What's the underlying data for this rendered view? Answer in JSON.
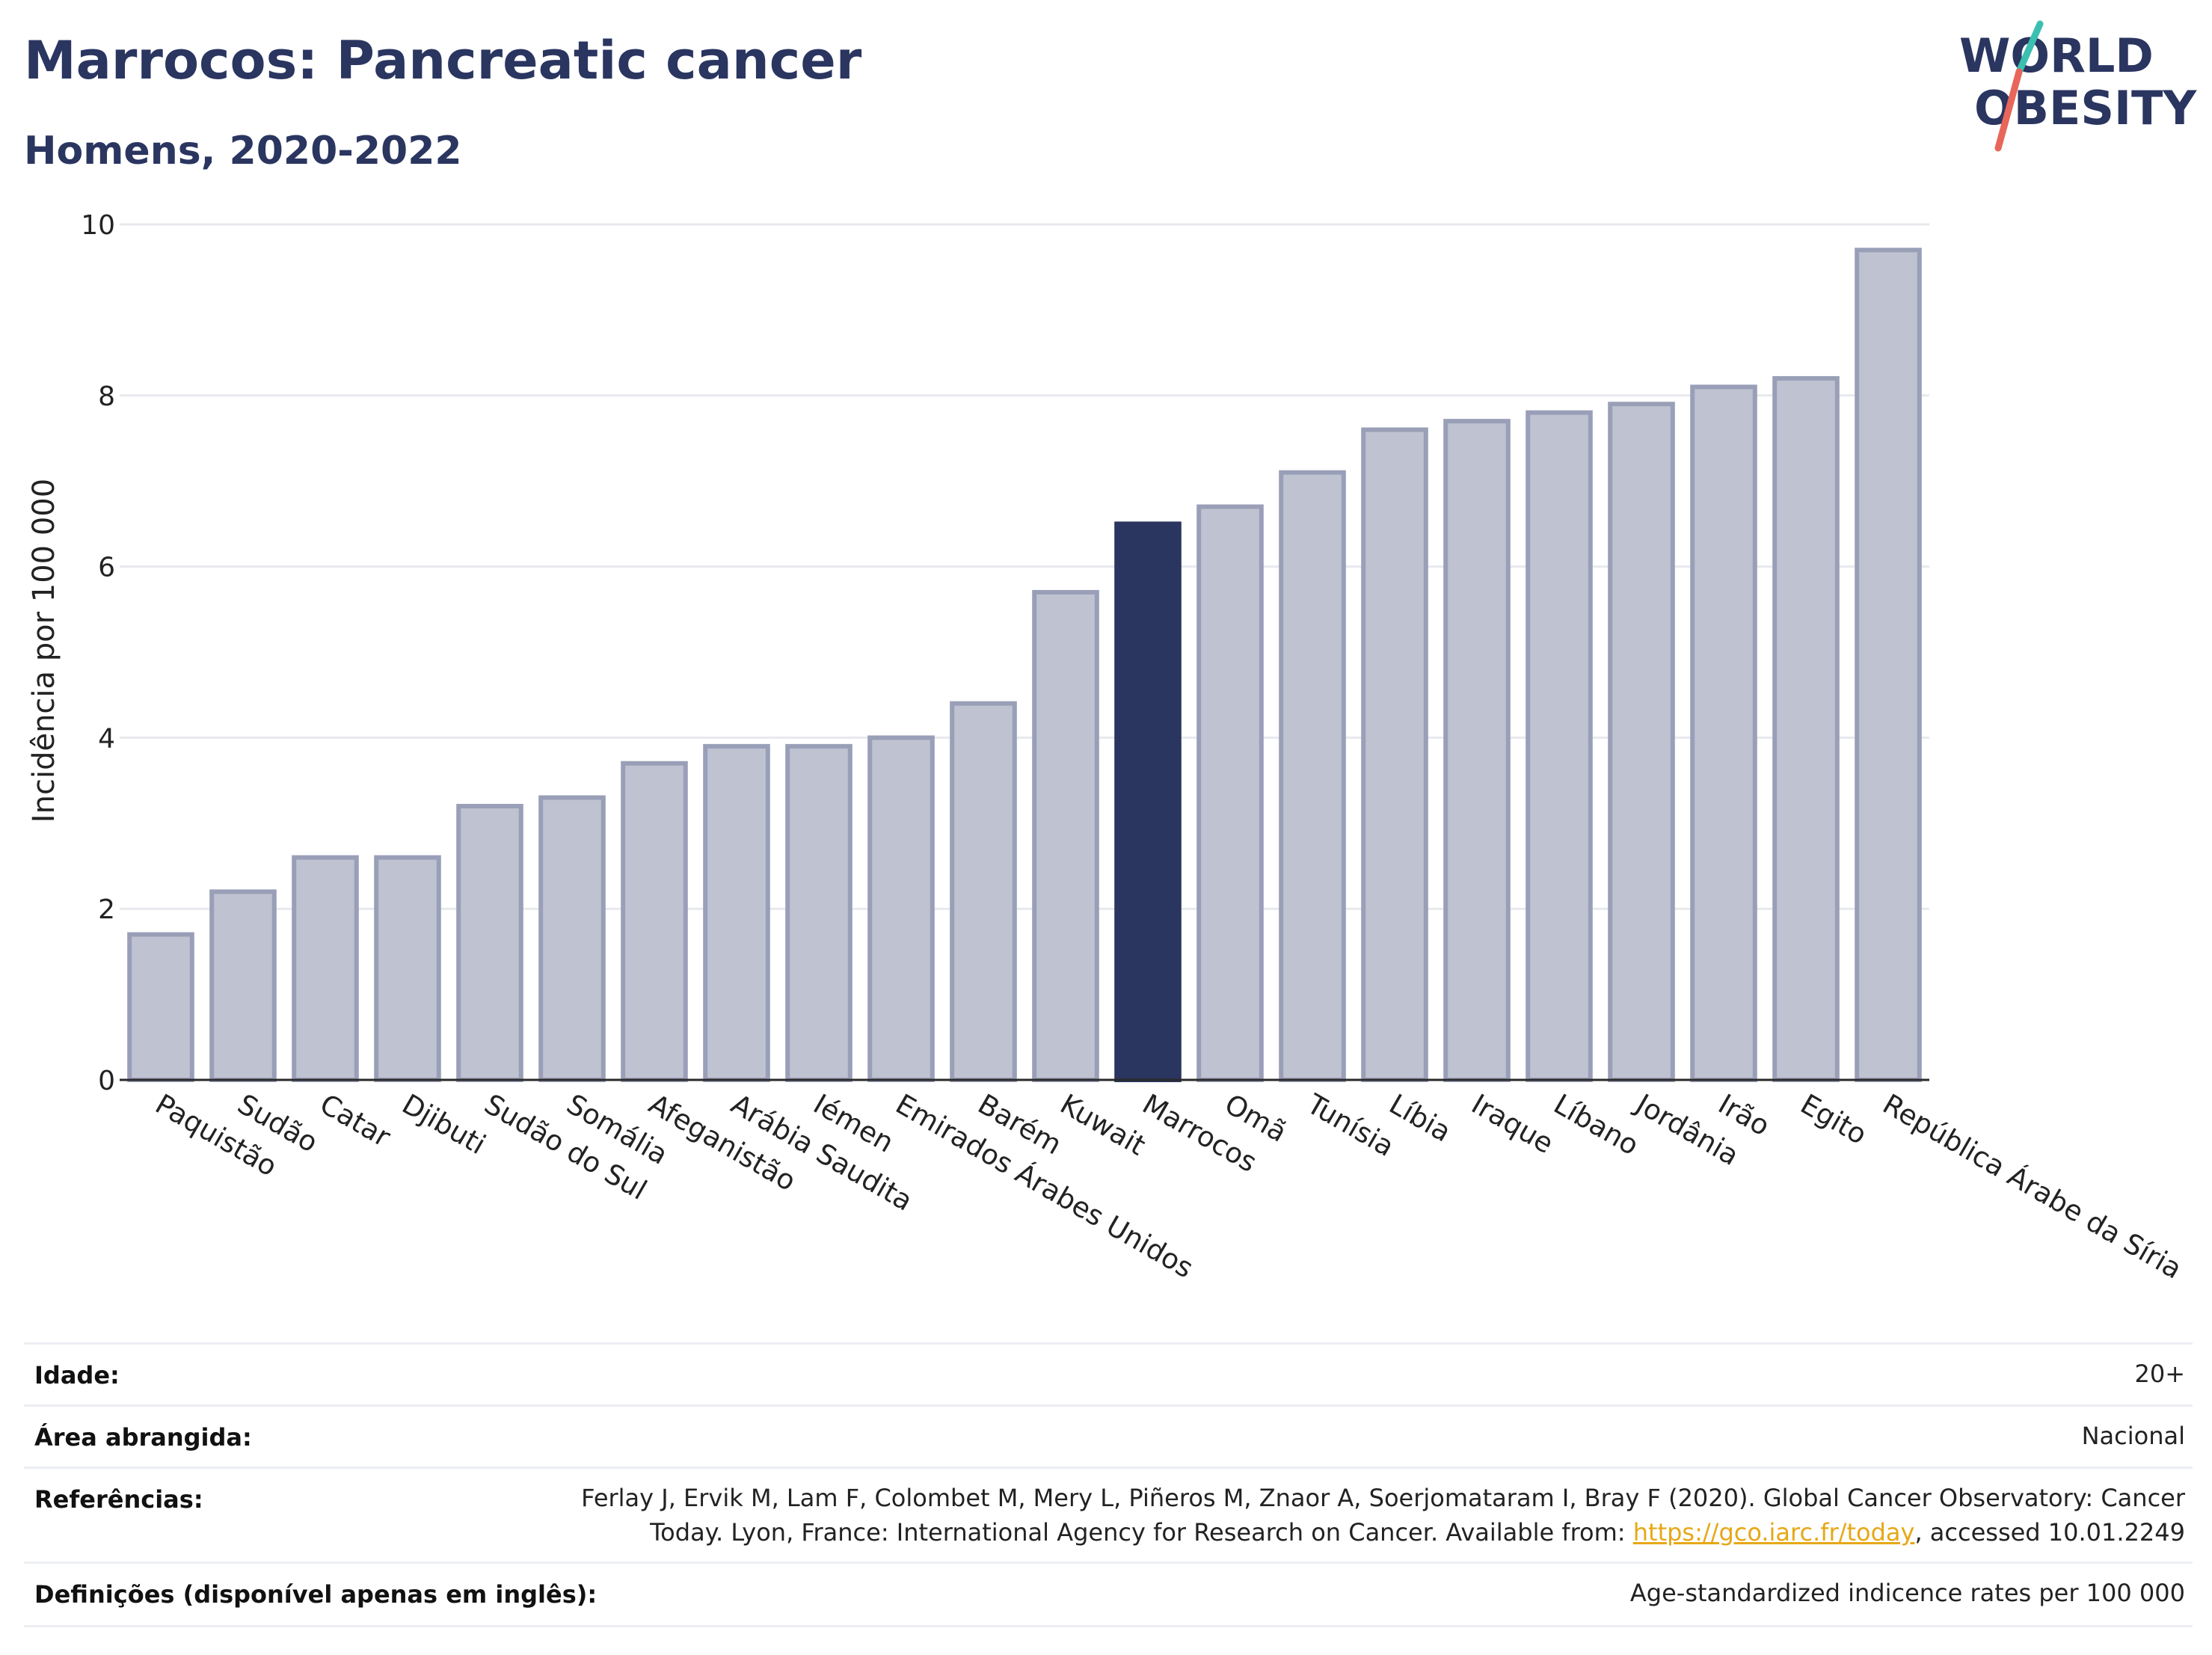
{
  "header": {
    "title": "Marrocos: Pancreatic cancer",
    "subtitle": "Homens, 2020-2022"
  },
  "logo": {
    "line1": "WORLD",
    "line2": "OBESITY",
    "accent_teal": "#3bbfb0",
    "accent_coral": "#e8665a"
  },
  "colors": {
    "bar_default": "#bfc2d0",
    "bar_outline": "#9a9fb8",
    "bar_highlight": "#2a3560",
    "grid": "#e8e9ee",
    "text": "#2a3560"
  },
  "chart_data": {
    "type": "bar",
    "ylabel": "Incidência por 100 000",
    "xlabel": "",
    "ylim": [
      0,
      10
    ],
    "yticks": [
      0,
      2,
      4,
      6,
      8,
      10
    ],
    "grid": true,
    "highlight": "Marrocos",
    "categories": [
      "Paquistão",
      "Sudão",
      "Catar",
      "Djibuti",
      "Sudão do Sul",
      "Somália",
      "Afeganistão",
      "Arábia Saudita",
      "Iémen",
      "Emirados Árabes Unidos",
      "Barém",
      "Kuwait",
      "Marrocos",
      "Omã",
      "Tunísia",
      "Líbia",
      "Iraque",
      "Líbano",
      "Jordânia",
      "Irão",
      "Egito",
      "República Árabe da Síria"
    ],
    "values": [
      1.7,
      2.2,
      2.6,
      2.6,
      3.2,
      3.3,
      3.7,
      3.9,
      3.9,
      4.0,
      4.4,
      5.7,
      6.5,
      6.7,
      7.1,
      7.6,
      7.7,
      7.8,
      7.9,
      8.1,
      8.2,
      9.7
    ]
  },
  "info": {
    "rows": [
      {
        "label": "Idade:",
        "value": "20+"
      },
      {
        "label": "Área abrangida:",
        "value": "Nacional"
      },
      {
        "label": "Referências:",
        "value_line1": "Ferlay J, Ervik M, Lam F, Colombet M, Mery L, Piñeros M, Znaor A, Soerjomataram I, Bray F (2020). Global Cancer Observatory: Cancer",
        "value_line2_pre": "Today. Lyon, France: International Agency for Research on Cancer. Available from: ",
        "link": "https://gco.iarc.fr/today",
        "value_line2_post": ", accessed 10.01.2249"
      },
      {
        "label": "Definições (disponível apenas em inglês):",
        "value": "Age-standardized indicence rates per 100 000"
      }
    ]
  }
}
